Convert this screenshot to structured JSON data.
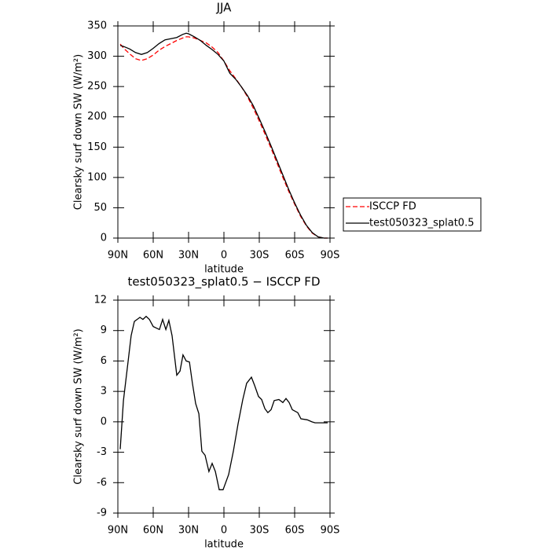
{
  "chart_data": [
    {
      "type": "line",
      "title": "JJA",
      "xlabel": "latitude",
      "ylabel": "Clearsky surf down SW (W/m²)",
      "x": [
        88,
        85,
        80,
        75,
        70,
        65,
        60,
        55,
        50,
        45,
        40,
        35,
        32,
        30,
        25,
        20,
        15,
        10,
        5,
        0,
        -5,
        -10,
        -15,
        -20,
        -25,
        -30,
        -35,
        -40,
        -45,
        -50,
        -55,
        -60,
        -65,
        -70,
        -75,
        -80,
        -85,
        -88
      ],
      "series": [
        {
          "name": "ISCCP FD",
          "color": "#ff0000",
          "line_style": "dashed",
          "values": [
            320,
            313,
            304,
            296,
            293,
            296,
            302,
            310,
            316,
            321,
            326,
            330,
            332,
            332,
            330,
            326,
            322,
            315,
            306,
            292,
            276,
            263,
            249,
            233,
            214,
            193,
            171,
            148,
            124,
            100,
            77,
            56,
            36,
            20,
            8,
            2,
            0,
            0
          ]
        },
        {
          "name": "test050323_splat0.5",
          "color": "#000000",
          "line_style": "solid",
          "values": [
            318,
            316,
            312,
            306,
            303,
            306,
            313,
            321,
            327,
            329,
            331,
            336,
            338,
            337,
            332,
            326,
            318,
            311,
            303,
            292,
            272,
            262,
            249,
            235,
            218,
            197,
            175,
            152,
            128,
            104,
            80,
            58,
            38,
            21,
            9,
            2,
            0,
            0
          ]
        }
      ],
      "xlim": [
        90,
        -90
      ],
      "xticks": [
        {
          "value": 90,
          "label": "90N"
        },
        {
          "value": 60,
          "label": "60N"
        },
        {
          "value": 30,
          "label": "30N"
        },
        0,
        {
          "value": -30,
          "label": "30S"
        },
        {
          "value": -60,
          "label": "60S"
        },
        {
          "value": -90,
          "label": "90S"
        }
      ],
      "ylim": [
        0,
        350
      ],
      "yticks": [
        0,
        50,
        100,
        150,
        200,
        250,
        300,
        350
      ],
      "legend": "right"
    },
    {
      "type": "line",
      "title": "test050323_splat0.5 − ISCCP FD",
      "xlabel": "latitude",
      "ylabel": "Clearsky surf down SW (W/m²)",
      "x": [
        88,
        85.3,
        81.3,
        78.7,
        76,
        71.3,
        68.7,
        66,
        63.3,
        60,
        54.7,
        52,
        49.3,
        46.7,
        44,
        40,
        37.3,
        34.7,
        32,
        29.3,
        26.7,
        24,
        21.3,
        18.7,
        16,
        12.7,
        10,
        7.3,
        4,
        0.7,
        -4,
        -8,
        -12,
        -16,
        -19.3,
        -23.3,
        -26,
        -29.3,
        -32,
        -34.7,
        -37.3,
        -40,
        -42.7,
        -46.7,
        -50,
        -52.7,
        -55.3,
        -58,
        -62.7,
        -65.3,
        -70.7,
        -74.7,
        -77.3,
        -88
      ],
      "series": [
        {
          "name": "test050323_splat0.5 − ISCCP FD",
          "color": "#000000",
          "line_style": "solid",
          "values": [
            -2.7,
            2.1,
            6,
            8.5,
            9.9,
            10.3,
            10.1,
            10.4,
            10.1,
            9.4,
            9.1,
            10.1,
            9.1,
            10,
            8.5,
            4.6,
            5,
            6.6,
            6,
            5.9,
            3.8,
            1.8,
            0.8,
            -2.9,
            -3.3,
            -4.9,
            -4.1,
            -4.9,
            -6.7,
            -6.7,
            -5.2,
            -2.9,
            -0.2,
            2.2,
            3.8,
            4.4,
            3.6,
            2.5,
            2.2,
            1.3,
            0.9,
            1.2,
            2.1,
            2.2,
            1.9,
            2.3,
            1.9,
            1.2,
            0.9,
            0.3,
            0.2,
            0,
            -0.1,
            -0.1
          ]
        }
      ],
      "xlim": [
        90,
        -90
      ],
      "xticks": [
        {
          "value": 90,
          "label": "90N"
        },
        {
          "value": 60,
          "label": "60N"
        },
        {
          "value": 30,
          "label": "30N"
        },
        0,
        {
          "value": -30,
          "label": "30S"
        },
        {
          "value": -60,
          "label": "60S"
        },
        {
          "value": -90,
          "label": "90S"
        }
      ],
      "ylim": [
        -9,
        12
      ],
      "yticks": [
        -9,
        -6,
        -3,
        0,
        3,
        6,
        9,
        12
      ]
    }
  ]
}
